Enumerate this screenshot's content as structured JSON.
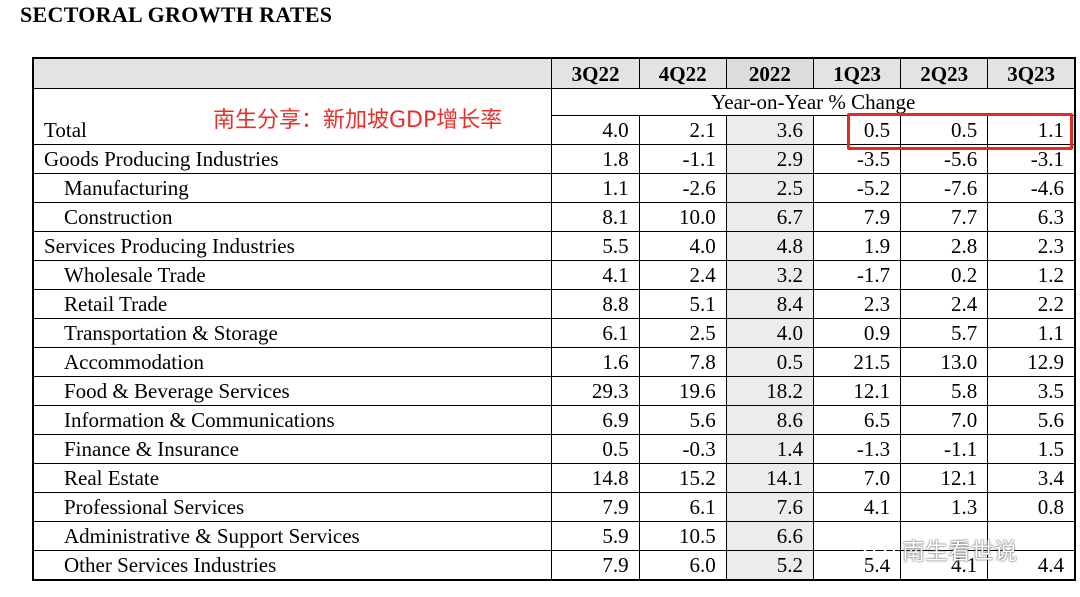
{
  "title": "SECTORAL GROWTH RATES",
  "columns": [
    "3Q22",
    "4Q22",
    "2022",
    "1Q23",
    "2Q23",
    "3Q23"
  ],
  "subheader": "Year-on-Year % Change",
  "rows": [
    {
      "label": "Total",
      "indent": false,
      "values": [
        "4.0",
        "2.1",
        "3.6",
        "0.5",
        "0.5",
        "1.1"
      ]
    },
    {
      "label": "Goods Producing Industries",
      "indent": false,
      "values": [
        "1.8",
        "-1.1",
        "2.9",
        "-3.5",
        "-5.6",
        "-3.1"
      ]
    },
    {
      "label": "Manufacturing",
      "indent": true,
      "values": [
        "1.1",
        "-2.6",
        "2.5",
        "-5.2",
        "-7.6",
        "-4.6"
      ]
    },
    {
      "label": "Construction",
      "indent": true,
      "values": [
        "8.1",
        "10.0",
        "6.7",
        "7.9",
        "7.7",
        "6.3"
      ]
    },
    {
      "label": "Services Producing Industries",
      "indent": false,
      "values": [
        "5.5",
        "4.0",
        "4.8",
        "1.9",
        "2.8",
        "2.3"
      ]
    },
    {
      "label": "Wholesale Trade",
      "indent": true,
      "values": [
        "4.1",
        "2.4",
        "3.2",
        "-1.7",
        "0.2",
        "1.2"
      ]
    },
    {
      "label": "Retail Trade",
      "indent": true,
      "values": [
        "8.8",
        "5.1",
        "8.4",
        "2.3",
        "2.4",
        "2.2"
      ]
    },
    {
      "label": "Transportation & Storage",
      "indent": true,
      "values": [
        "6.1",
        "2.5",
        "4.0",
        "0.9",
        "5.7",
        "1.1"
      ]
    },
    {
      "label": "Accommodation",
      "indent": true,
      "values": [
        "1.6",
        "7.8",
        "0.5",
        "21.5",
        "13.0",
        "12.9"
      ]
    },
    {
      "label": "Food & Beverage Services",
      "indent": true,
      "values": [
        "29.3",
        "19.6",
        "18.2",
        "12.1",
        "5.8",
        "3.5"
      ]
    },
    {
      "label": "Information & Communications",
      "indent": true,
      "values": [
        "6.9",
        "5.6",
        "8.6",
        "6.5",
        "7.0",
        "5.6"
      ]
    },
    {
      "label": "Finance & Insurance",
      "indent": true,
      "values": [
        "0.5",
        "-0.3",
        "1.4",
        "-1.3",
        "-1.1",
        "1.5"
      ]
    },
    {
      "label": "Real Estate",
      "indent": true,
      "values": [
        "14.8",
        "15.2",
        "14.1",
        "7.0",
        "12.1",
        "3.4"
      ]
    },
    {
      "label": "Professional Services",
      "indent": true,
      "values": [
        "7.9",
        "6.1",
        "7.6",
        "4.1",
        "1.3",
        "0.8"
      ]
    },
    {
      "label": "Administrative & Support Services",
      "indent": true,
      "values": [
        "5.9",
        "10.5",
        "6.6",
        "",
        "",
        ""
      ]
    },
    {
      "label": "Other Services Industries",
      "indent": true,
      "values": [
        "7.9",
        "6.0",
        "5.2",
        "5.4",
        "4.1",
        "4.4"
      ]
    }
  ],
  "annotation": "南生分享：新加坡GDP增长率",
  "watermark": "南生看世说",
  "colors": {
    "annotation": "#e8302a",
    "highlight_box": "#e32a24",
    "header_bg": "#e3e3e3",
    "shaded_col": "#ececec"
  }
}
